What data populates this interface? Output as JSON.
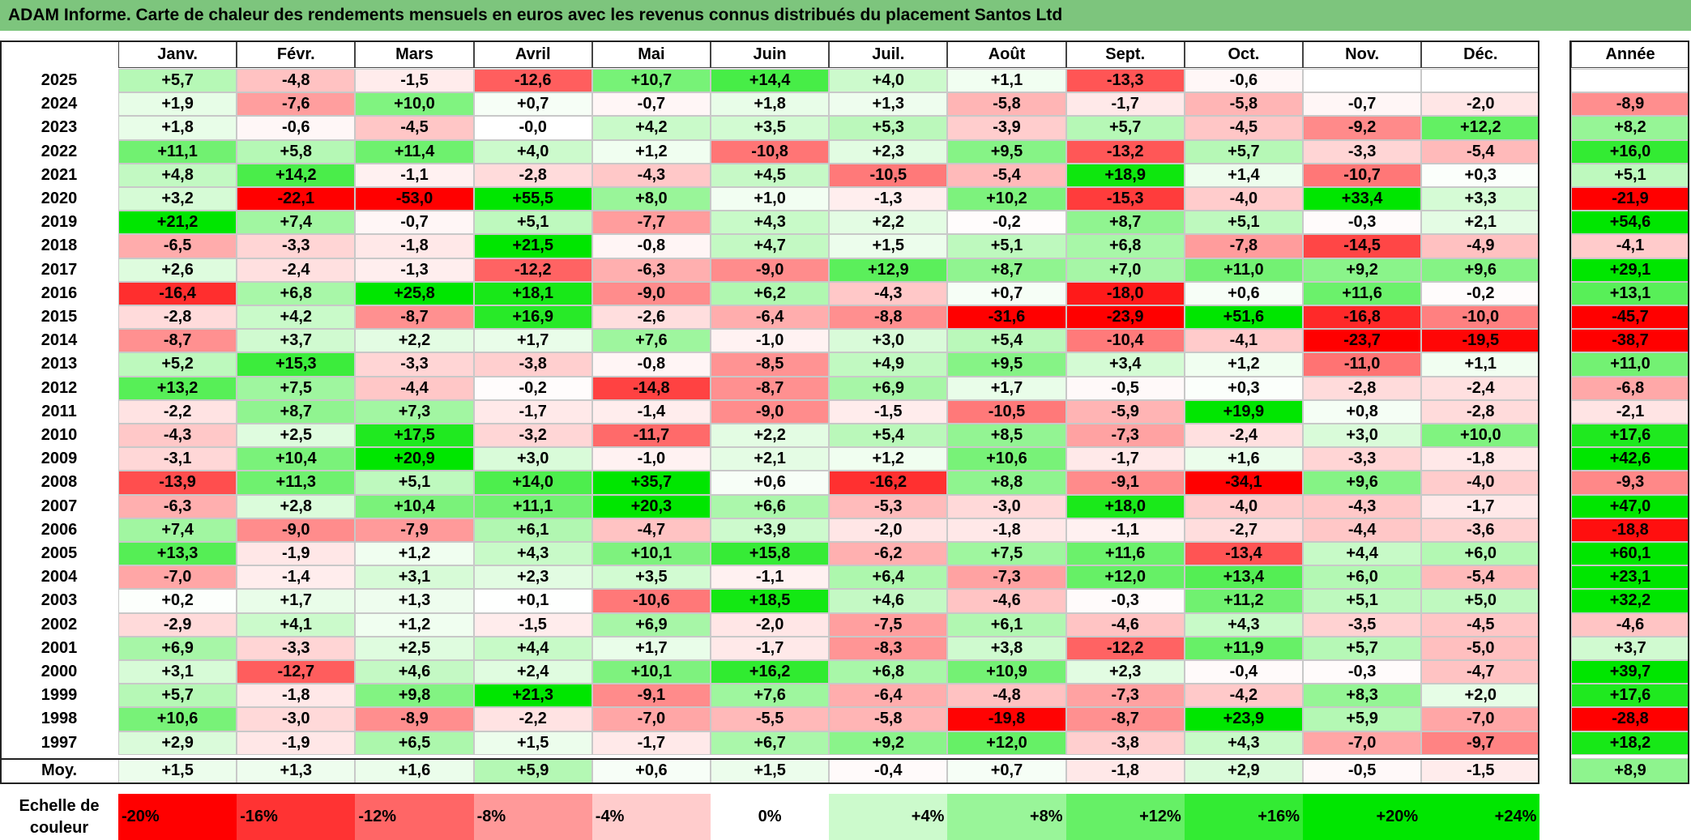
{
  "title": "ADAM Informe. Carte de chaleur des rendements mensuels en euros avec les revenus connus distribués du placement Santos Ltd",
  "chart_data": {
    "type": "heatmap",
    "title": "ADAM Informe. Carte de chaleur des rendements mensuels en euros avec les revenus connus distribués du placement Santos Ltd",
    "columns": [
      "Janv.",
      "Févr.",
      "Mars",
      "Avril",
      "Mai",
      "Juin",
      "Juil.",
      "Août",
      "Sept.",
      "Oct.",
      "Nov.",
      "Déc."
    ],
    "year_column": "Année",
    "rows": [
      {
        "year": "2025",
        "months": [
          "+5,7",
          "-4,8",
          "-1,5",
          "-12,6",
          "+10,7",
          "+14,4",
          "+4,0",
          "+1,1",
          "-13,3",
          "-0,6",
          "",
          ""
        ],
        "annual": ""
      },
      {
        "year": "2024",
        "months": [
          "+1,9",
          "-7,6",
          "+10,0",
          "+0,7",
          "-0,7",
          "+1,8",
          "+1,3",
          "-5,8",
          "-1,7",
          "-5,8",
          "-0,7",
          "-2,0"
        ],
        "annual": "-8,9"
      },
      {
        "year": "2023",
        "months": [
          "+1,8",
          "-0,6",
          "-4,5",
          "-0,0",
          "+4,2",
          "+3,5",
          "+5,3",
          "-3,9",
          "+5,7",
          "-4,5",
          "-9,2",
          "+12,2"
        ],
        "annual": "+8,2"
      },
      {
        "year": "2022",
        "months": [
          "+11,1",
          "+5,8",
          "+11,4",
          "+4,0",
          "+1,2",
          "-10,8",
          "+2,3",
          "+9,5",
          "-13,2",
          "+5,7",
          "-3,3",
          "-5,4"
        ],
        "annual": "+16,0"
      },
      {
        "year": "2021",
        "months": [
          "+4,8",
          "+14,2",
          "-1,1",
          "-2,8",
          "-4,3",
          "+4,5",
          "-10,5",
          "-5,4",
          "+18,9",
          "+1,4",
          "-10,7",
          "+0,3"
        ],
        "annual": "+5,1"
      },
      {
        "year": "2020",
        "months": [
          "+3,2",
          "-22,1",
          "-53,0",
          "+55,5",
          "+8,0",
          "+1,0",
          "-1,3",
          "+10,2",
          "-15,3",
          "-4,0",
          "+33,4",
          "+3,3"
        ],
        "annual": "-21,9"
      },
      {
        "year": "2019",
        "months": [
          "+21,2",
          "+7,4",
          "-0,7",
          "+5,1",
          "-7,7",
          "+4,3",
          "+2,2",
          "-0,2",
          "+8,7",
          "+5,1",
          "-0,3",
          "+2,1"
        ],
        "annual": "+54,6"
      },
      {
        "year": "2018",
        "months": [
          "-6,5",
          "-3,3",
          "-1,8",
          "+21,5",
          "-0,8",
          "+4,7",
          "+1,5",
          "+5,1",
          "+6,8",
          "-7,8",
          "-14,5",
          "-4,9"
        ],
        "annual": "-4,1"
      },
      {
        "year": "2017",
        "months": [
          "+2,6",
          "-2,4",
          "-1,3",
          "-12,2",
          "-6,3",
          "-9,0",
          "+12,9",
          "+8,7",
          "+7,0",
          "+11,0",
          "+9,2",
          "+9,6"
        ],
        "annual": "+29,1"
      },
      {
        "year": "2016",
        "months": [
          "-16,4",
          "+6,8",
          "+25,8",
          "+18,1",
          "-9,0",
          "+6,2",
          "-4,3",
          "+0,7",
          "-18,0",
          "+0,6",
          "+11,6",
          "-0,2"
        ],
        "annual": "+13,1"
      },
      {
        "year": "2015",
        "months": [
          "-2,8",
          "+4,2",
          "-8,7",
          "+16,9",
          "-2,6",
          "-6,4",
          "-8,8",
          "-31,6",
          "-23,9",
          "+51,6",
          "-16,8",
          "-10,0"
        ],
        "annual": "-45,7"
      },
      {
        "year": "2014",
        "months": [
          "-8,7",
          "+3,7",
          "+2,2",
          "+1,7",
          "+7,6",
          "-1,0",
          "+3,0",
          "+5,4",
          "-10,4",
          "-4,1",
          "-23,7",
          "-19,5"
        ],
        "annual": "-38,7"
      },
      {
        "year": "2013",
        "months": [
          "+5,2",
          "+15,3",
          "-3,3",
          "-3,8",
          "-0,8",
          "-8,5",
          "+4,9",
          "+9,5",
          "+3,4",
          "+1,2",
          "-11,0",
          "+1,1"
        ],
        "annual": "+11,0"
      },
      {
        "year": "2012",
        "months": [
          "+13,2",
          "+7,5",
          "-4,4",
          "-0,2",
          "-14,8",
          "-8,7",
          "+6,9",
          "+1,7",
          "-0,5",
          "+0,3",
          "-2,8",
          "-2,4"
        ],
        "annual": "-6,8"
      },
      {
        "year": "2011",
        "months": [
          "-2,2",
          "+8,7",
          "+7,3",
          "-1,7",
          "-1,4",
          "-9,0",
          "-1,5",
          "-10,5",
          "-5,9",
          "+19,9",
          "+0,8",
          "-2,8"
        ],
        "annual": "-2,1"
      },
      {
        "year": "2010",
        "months": [
          "-4,3",
          "+2,5",
          "+17,5",
          "-3,2",
          "-11,7",
          "+2,2",
          "+5,4",
          "+8,5",
          "-7,3",
          "-2,4",
          "+3,0",
          "+10,0"
        ],
        "annual": "+17,6"
      },
      {
        "year": "2009",
        "months": [
          "-3,1",
          "+10,4",
          "+20,9",
          "+3,0",
          "-1,0",
          "+2,1",
          "+1,2",
          "+10,6",
          "-1,7",
          "+1,6",
          "-3,3",
          "-1,8"
        ],
        "annual": "+42,6"
      },
      {
        "year": "2008",
        "months": [
          "-13,9",
          "+11,3",
          "+5,1",
          "+14,0",
          "+35,7",
          "+0,6",
          "-16,2",
          "+8,8",
          "-9,1",
          "-34,1",
          "+9,6",
          "-4,0"
        ],
        "annual": "-9,3"
      },
      {
        "year": "2007",
        "months": [
          "-6,3",
          "+2,8",
          "+10,4",
          "+11,1",
          "+20,3",
          "+6,6",
          "-5,3",
          "-3,0",
          "+18,0",
          "-4,0",
          "-4,3",
          "-1,7"
        ],
        "annual": "+47,0"
      },
      {
        "year": "2006",
        "months": [
          "+7,4",
          "-9,0",
          "-7,9",
          "+6,1",
          "-4,7",
          "+3,9",
          "-2,0",
          "-1,8",
          "-1,1",
          "-2,7",
          "-4,4",
          "-3,6"
        ],
        "annual": "-18,8"
      },
      {
        "year": "2005",
        "months": [
          "+13,3",
          "-1,9",
          "+1,2",
          "+4,3",
          "+10,1",
          "+15,8",
          "-6,2",
          "+7,5",
          "+11,6",
          "-13,4",
          "+4,4",
          "+6,0"
        ],
        "annual": "+60,1"
      },
      {
        "year": "2004",
        "months": [
          "-7,0",
          "-1,4",
          "+3,1",
          "+2,3",
          "+3,5",
          "-1,1",
          "+6,4",
          "-7,3",
          "+12,0",
          "+13,4",
          "+6,0",
          "-5,4"
        ],
        "annual": "+23,1"
      },
      {
        "year": "2003",
        "months": [
          "+0,2",
          "+1,7",
          "+1,3",
          "+0,1",
          "-10,6",
          "+18,5",
          "+4,6",
          "-4,6",
          "-0,3",
          "+11,2",
          "+5,1",
          "+5,0"
        ],
        "annual": "+32,2"
      },
      {
        "year": "2002",
        "months": [
          "-2,9",
          "+4,1",
          "+1,2",
          "-1,5",
          "+6,9",
          "-2,0",
          "-7,5",
          "+6,1",
          "-4,6",
          "+4,3",
          "-3,5",
          "-4,5"
        ],
        "annual": "-4,6"
      },
      {
        "year": "2001",
        "months": [
          "+6,9",
          "-3,3",
          "+2,5",
          "+4,4",
          "+1,7",
          "-1,7",
          "-8,3",
          "+3,8",
          "-12,2",
          "+11,9",
          "+5,7",
          "-5,0"
        ],
        "annual": "+3,7"
      },
      {
        "year": "2000",
        "months": [
          "+3,1",
          "-12,7",
          "+4,6",
          "+2,4",
          "+10,1",
          "+16,2",
          "+6,8",
          "+10,9",
          "+2,3",
          "-0,4",
          "-0,3",
          "-4,7"
        ],
        "annual": "+39,7"
      },
      {
        "year": "1999",
        "months": [
          "+5,7",
          "-1,8",
          "+9,8",
          "+21,3",
          "-9,1",
          "+7,6",
          "-6,4",
          "-4,8",
          "-7,3",
          "-4,2",
          "+8,3",
          "+2,0"
        ],
        "annual": "+17,6"
      },
      {
        "year": "1998",
        "months": [
          "+10,6",
          "-3,0",
          "-8,9",
          "-2,2",
          "-7,0",
          "-5,5",
          "-5,8",
          "-19,8",
          "-8,7",
          "+23,9",
          "+5,9",
          "-7,0"
        ],
        "annual": "-28,8"
      },
      {
        "year": "1997",
        "months": [
          "+2,9",
          "-1,9",
          "+6,5",
          "+1,5",
          "-1,7",
          "+6,7",
          "+9,2",
          "+12,0",
          "-3,8",
          "+4,3",
          "-7,0",
          "-9,7"
        ],
        "annual": "+18,2"
      }
    ],
    "average": {
      "label": "Moy.",
      "months": [
        "+1,5",
        "+1,3",
        "+1,6",
        "+5,9",
        "+0,6",
        "+1,5",
        "-0,4",
        "+0,7",
        "-1,8",
        "+2,9",
        "-0,5",
        "-1,5"
      ],
      "annual": "+8,9"
    },
    "scale": {
      "label": "Echelle de couleur",
      "steps": [
        "-20%",
        "-16%",
        "-12%",
        "-8%",
        "-4%",
        "0%",
        "+4%",
        "+8%",
        "+12%",
        "+16%",
        "+20%",
        "+24%"
      ]
    },
    "colors": {
      "negative_max": "#ff0000",
      "neutral": "#ffffff",
      "positive_max": "#00e600",
      "header_bg": "#7dc57d"
    }
  }
}
